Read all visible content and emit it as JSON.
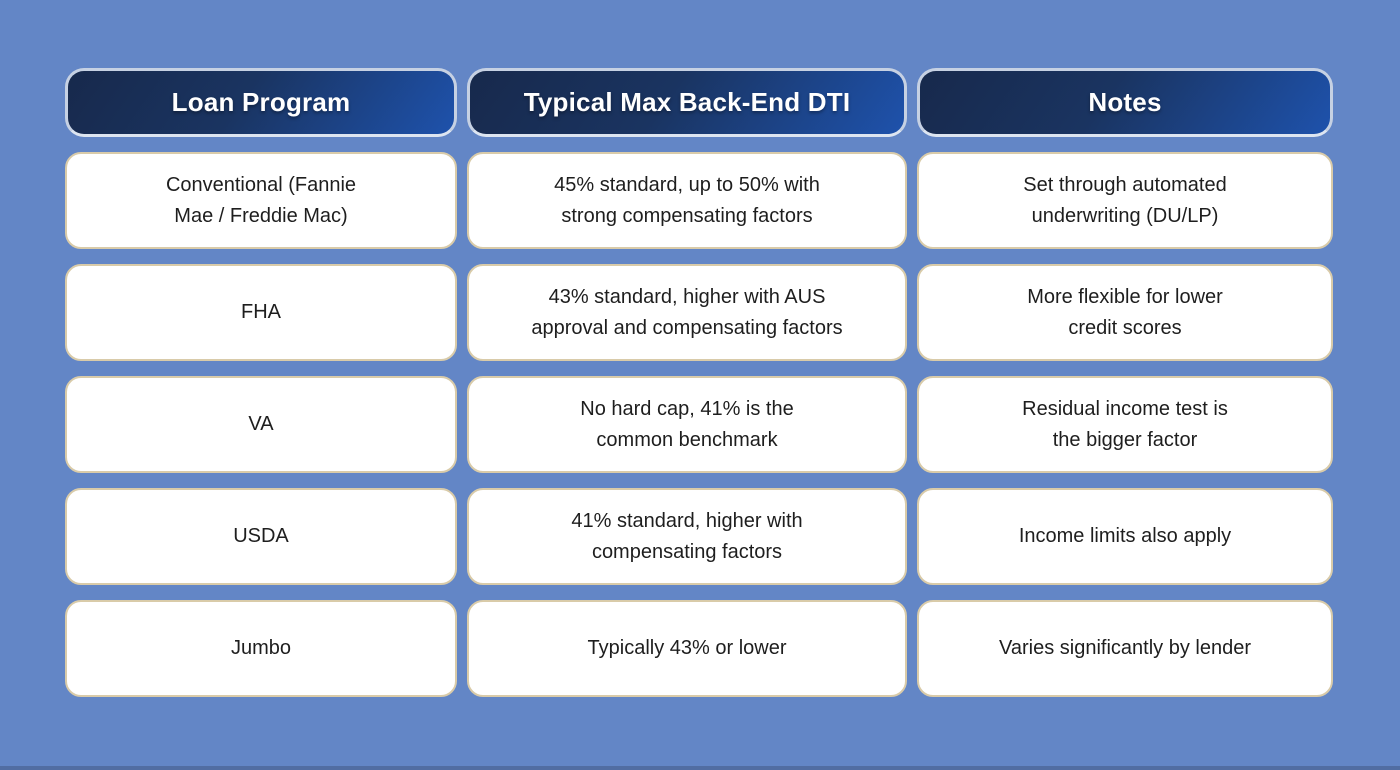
{
  "theme": {
    "page_background": "#6386C6",
    "header_gradient_start": "#17294C",
    "header_gradient_end": "#1E52AC",
    "header_border": "#C6D1E3",
    "header_text_color": "#FFFFFF",
    "cell_background": "#FFFFFF",
    "cell_border": "#D9CBA9",
    "cell_text_color": "#1E1E1E"
  },
  "chart_data": {
    "type": "table",
    "title": "",
    "columns": [
      "Loan Program",
      "Typical Max Back-End DTI",
      "Notes"
    ],
    "rows": [
      [
        "Conventional (Fannie\nMae / Freddie Mac)",
        "45% standard, up to 50% with\nstrong compensating factors",
        "Set through automated\nunderwriting (DU/LP)"
      ],
      [
        "FHA",
        "43% standard, higher with AUS\napproval and compensating factors",
        "More flexible for lower\ncredit scores"
      ],
      [
        "VA",
        "No hard cap, 41% is the\ncommon benchmark",
        "Residual income test is\nthe bigger factor"
      ],
      [
        "USDA",
        "41% standard, higher with\ncompensating factors",
        "Income limits also apply"
      ],
      [
        "Jumbo",
        "Typically 43% or lower",
        "Varies significantly by lender"
      ]
    ]
  }
}
